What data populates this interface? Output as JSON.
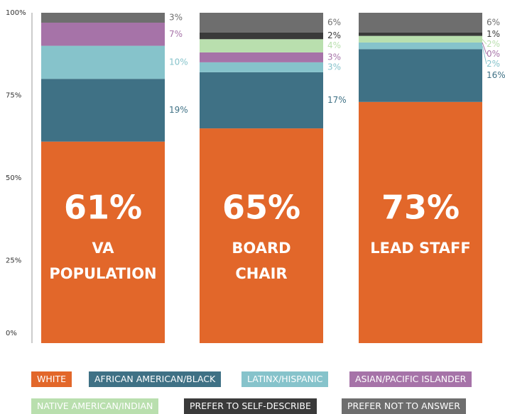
{
  "chart_data": {
    "type": "stacked_bar",
    "categories": [
      "VA\nPOPULATION",
      "BOARD\nCHAIR",
      "LEAD STAFF"
    ],
    "ylim": [
      0,
      100
    ],
    "yticks": [
      {
        "value": 0,
        "label": "0%"
      },
      {
        "value": 25,
        "label": "25%"
      },
      {
        "value": 50,
        "label": "50%"
      },
      {
        "value": 75,
        "label": "75%"
      },
      {
        "value": 100,
        "label": "100%"
      }
    ],
    "series": [
      {
        "name": "WHITE",
        "color": "#e2672a",
        "values": [
          61,
          65,
          73
        ],
        "value_labels": [
          "61%",
          "65%",
          "73%"
        ]
      },
      {
        "name": "AFRICAN AMERICAN/BLACK",
        "color": "#3f7185",
        "values": [
          19,
          17,
          16
        ],
        "value_labels": [
          "19%",
          "17%",
          "16%"
        ]
      },
      {
        "name": "LATINX/HISPANIC",
        "color": "#86c3cb",
        "values": [
          10,
          3,
          2
        ],
        "value_labels": [
          "10%",
          "3%",
          "2%"
        ]
      },
      {
        "name": "ASIAN/PACIFIC ISLANDER",
        "color": "#a673a8",
        "values": [
          7,
          3,
          0
        ],
        "value_labels": [
          "7%",
          "3%",
          "0%"
        ]
      },
      {
        "name": "NATIVE AMERICAN/INDIAN",
        "color": "#b9dfae",
        "values": [
          null,
          4,
          2
        ],
        "value_labels": [
          null,
          "4%",
          "2%"
        ]
      },
      {
        "name": "PREFER TO SELF-DESCRIBE",
        "color": "#3a3a3a",
        "values": [
          null,
          2,
          1
        ],
        "value_labels": [
          null,
          "2%",
          "1%"
        ]
      },
      {
        "name": "PREFER NOT TO ANSWER",
        "color": "#6e6e6e",
        "values": [
          3,
          6,
          6
        ],
        "value_labels": [
          "3%",
          "6%",
          "6%"
        ]
      }
    ]
  }
}
